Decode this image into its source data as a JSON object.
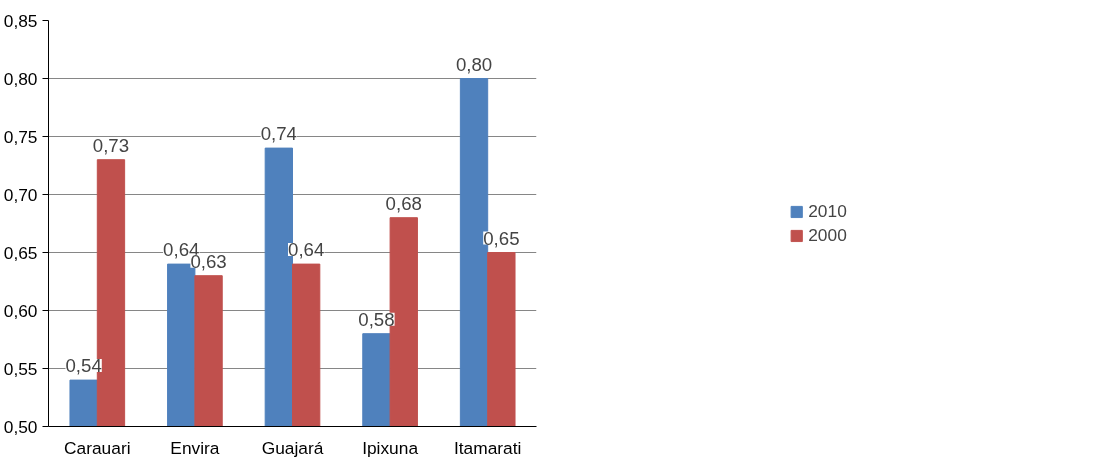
{
  "chart_data": {
    "type": "bar",
    "categories": [
      "Carauari",
      "Envira",
      "Guajará",
      "Ipixuna",
      "Itamarati"
    ],
    "series": [
      {
        "name": "2010",
        "color": "#4f81bd",
        "values": [
          0.54,
          0.64,
          0.74,
          0.58,
          0.8
        ],
        "value_labels": [
          "0,54",
          "0,64",
          "0,74",
          "0,58",
          "0,80"
        ]
      },
      {
        "name": "2000",
        "color": "#c0504d",
        "values": [
          0.73,
          0.63,
          0.64,
          0.68,
          0.65
        ],
        "value_labels": [
          "0,73",
          "0,63",
          "0,64",
          "0,68",
          "0,65"
        ]
      }
    ],
    "ylim": [
      0.5,
      0.85
    ],
    "yticks": [
      {
        "value": 0.5,
        "label": "0,50"
      },
      {
        "value": 0.55,
        "label": "0,55"
      },
      {
        "value": 0.6,
        "label": "0,60"
      },
      {
        "value": 0.65,
        "label": "0,65"
      },
      {
        "value": 0.7,
        "label": "0,70"
      },
      {
        "value": 0.75,
        "label": "0,75"
      },
      {
        "value": 0.8,
        "label": "0,80"
      },
      {
        "value": 0.85,
        "label": "0,85"
      }
    ],
    "grid": "y",
    "legend": "right"
  }
}
